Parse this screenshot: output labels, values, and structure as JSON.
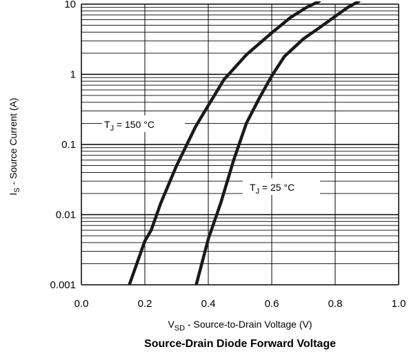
{
  "chart_data": {
    "type": "line",
    "title": "Source-Drain Diode Forward Voltage",
    "xlabel": {
      "main": "V",
      "sub": "SD",
      "rest": " - Source-to-Drain Voltage (V)"
    },
    "ylabel": {
      "main": "I",
      "sub": "S",
      "rest": " - Source Current (A)"
    },
    "xlim": [
      0.0,
      1.0
    ],
    "ylim": [
      0.001,
      10
    ],
    "y_scale": "log",
    "x_ticks": [
      0.0,
      0.2,
      0.4,
      0.6,
      0.8,
      1.0
    ],
    "x_tick_labels": [
      "0.0",
      "0.2",
      "0.4",
      "0.6",
      "0.8",
      "1.0"
    ],
    "y_ticks": [
      0.001,
      0.01,
      0.1,
      1,
      10
    ],
    "y_tick_labels": [
      "0.001",
      "0.01",
      "0.1",
      "1",
      "10"
    ],
    "grid": true,
    "series": [
      {
        "label": {
          "main": "T",
          "sub": "J",
          "rest": " = 150 °C"
        },
        "x": [
          0.151,
          0.2,
          0.22,
          0.25,
          0.3,
          0.36,
          0.4,
          0.45,
          0.52,
          0.6,
          0.66,
          0.71,
          0.75
        ],
        "y": [
          0.001,
          0.0042,
          0.006,
          0.0145,
          0.05,
          0.18,
          0.36,
          0.85,
          1.9,
          3.9,
          6.5,
          9.0,
          11.0
        ]
      },
      {
        "label": {
          "main": "T",
          "sub": "J",
          "rest": " = 25 °C"
        },
        "x": [
          0.362,
          0.4,
          0.44,
          0.48,
          0.52,
          0.56,
          0.6,
          0.64,
          0.7,
          0.75,
          0.8,
          0.84,
          0.875
        ],
        "y": [
          0.001,
          0.0045,
          0.015,
          0.06,
          0.2,
          0.45,
          0.95,
          1.8,
          3.2,
          4.6,
          6.7,
          9.0,
          11.0
        ]
      }
    ],
    "colors": {
      "line": "#1a1a1a",
      "grid": "#000000"
    }
  }
}
